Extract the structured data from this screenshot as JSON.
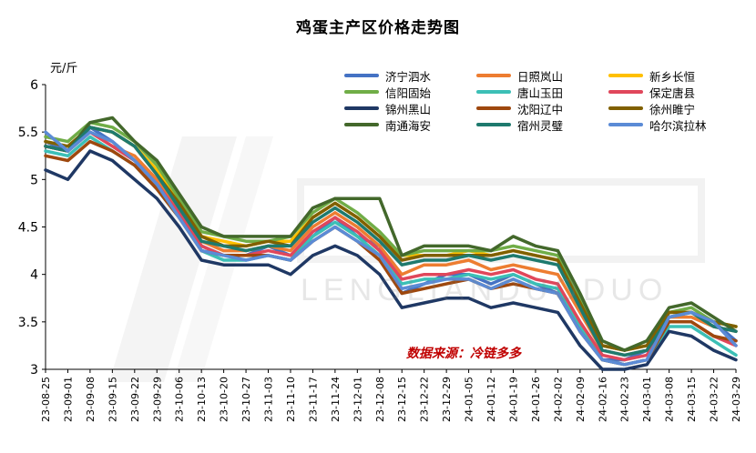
{
  "title": "鸡蛋主产区价格走势图",
  "unit": "元/斤",
  "source": "数据来源：冷链多多",
  "watermark": "LENGLIANDUODUO",
  "chart_data": {
    "type": "line",
    "ylim": [
      3,
      6
    ],
    "yticks": [
      "6",
      "5.5",
      "5",
      "4.5",
      "4",
      "3.5",
      "3"
    ],
    "x": [
      "23-08-25",
      "23-09-01",
      "23-09-08",
      "23-09-15",
      "23-09-22",
      "23-09-29",
      "23-10-06",
      "23-10-13",
      "23-10-20",
      "23-10-27",
      "23-11-03",
      "23-11-10",
      "23-11-17",
      "23-11-24",
      "23-12-01",
      "23-12-08",
      "23-12-15",
      "23-12-22",
      "23-12-29",
      "24-01-05",
      "24-01-12",
      "24-01-19",
      "24-01-26",
      "24-02-02",
      "24-02-09",
      "24-02-16",
      "24-02-23",
      "24-03-01",
      "24-03-08",
      "24-03-15",
      "24-03-22",
      "24-03-29"
    ],
    "legend_position": "top-right",
    "series": [
      {
        "name": "济宁泗水",
        "color": "#4472c4",
        "values": [
          5.4,
          5.3,
          5.55,
          5.4,
          5.2,
          5.0,
          4.7,
          4.3,
          4.2,
          4.2,
          4.3,
          4.2,
          4.4,
          4.6,
          4.4,
          4.3,
          3.8,
          3.9,
          4.0,
          4.0,
          3.9,
          4.0,
          3.9,
          3.8,
          3.4,
          3.1,
          3.1,
          3.2,
          3.6,
          3.6,
          3.5,
          3.3
        ]
      },
      {
        "name": "日照岚山",
        "color": "#ed7d31",
        "values": [
          5.35,
          5.3,
          5.5,
          5.35,
          5.25,
          5.0,
          4.65,
          4.35,
          4.25,
          4.25,
          4.3,
          4.25,
          4.5,
          4.65,
          4.5,
          4.3,
          4.0,
          4.1,
          4.1,
          4.15,
          4.05,
          4.1,
          4.05,
          4.0,
          3.6,
          3.2,
          3.15,
          3.2,
          3.55,
          3.55,
          3.45,
          3.4
        ]
      },
      {
        "name": "新乡长恒",
        "color": "#ffc000",
        "values": [
          5.4,
          5.35,
          5.55,
          5.5,
          5.35,
          5.1,
          4.75,
          4.4,
          4.35,
          4.3,
          4.35,
          4.35,
          4.6,
          4.75,
          4.6,
          4.4,
          4.2,
          4.2,
          4.2,
          4.25,
          4.2,
          4.25,
          4.2,
          4.15,
          3.7,
          3.25,
          3.2,
          3.25,
          3.6,
          3.6,
          3.5,
          3.45
        ]
      },
      {
        "name": "信阳固始",
        "color": "#70ad47",
        "values": [
          5.45,
          5.4,
          5.6,
          5.55,
          5.4,
          5.15,
          4.8,
          4.45,
          4.4,
          4.35,
          4.35,
          4.4,
          4.65,
          4.8,
          4.65,
          4.45,
          4.2,
          4.25,
          4.25,
          4.25,
          4.25,
          4.3,
          4.25,
          4.2,
          3.75,
          3.25,
          3.2,
          3.3,
          3.6,
          3.65,
          3.5,
          3.45
        ]
      },
      {
        "name": "唐山玉田",
        "color": "#3cbfb6",
        "values": [
          5.3,
          5.25,
          5.45,
          5.3,
          5.15,
          4.9,
          4.6,
          4.25,
          4.15,
          4.15,
          4.2,
          4.15,
          4.4,
          4.55,
          4.4,
          4.2,
          3.9,
          3.95,
          3.95,
          4.0,
          3.95,
          4.0,
          3.9,
          3.85,
          3.45,
          3.1,
          3.05,
          3.1,
          3.45,
          3.45,
          3.3,
          3.15
        ]
      },
      {
        "name": "保定唐县",
        "color": "#e0475b",
        "values": [
          5.35,
          5.3,
          5.5,
          5.35,
          5.2,
          4.95,
          4.65,
          4.3,
          4.2,
          4.2,
          4.25,
          4.2,
          4.45,
          4.6,
          4.45,
          4.25,
          3.95,
          4.0,
          4.0,
          4.05,
          4.0,
          4.05,
          3.95,
          3.9,
          3.5,
          3.15,
          3.1,
          3.15,
          3.5,
          3.5,
          3.35,
          3.25
        ]
      },
      {
        "name": "锦州黑山",
        "color": "#1f3864",
        "values": [
          5.1,
          5.0,
          5.3,
          5.2,
          5.0,
          4.8,
          4.5,
          4.15,
          4.1,
          4.1,
          4.1,
          4.0,
          4.2,
          4.3,
          4.2,
          4.0,
          3.65,
          3.7,
          3.75,
          3.75,
          3.65,
          3.7,
          3.65,
          3.6,
          3.25,
          3.0,
          3.0,
          3.05,
          3.4,
          3.35,
          3.2,
          3.1
        ]
      },
      {
        "name": "沈阳辽中",
        "color": "#9e480e",
        "values": [
          5.25,
          5.2,
          5.4,
          5.3,
          5.15,
          4.9,
          4.6,
          4.25,
          4.2,
          4.2,
          4.2,
          4.15,
          4.35,
          4.5,
          4.35,
          4.15,
          3.8,
          3.85,
          3.9,
          3.95,
          3.85,
          3.9,
          3.85,
          3.8,
          3.4,
          3.1,
          3.05,
          3.1,
          3.5,
          3.5,
          3.35,
          3.3
        ]
      },
      {
        "name": "徐州睢宁",
        "color": "#806000",
        "values": [
          5.4,
          5.35,
          5.55,
          5.5,
          5.35,
          5.05,
          4.75,
          4.4,
          4.3,
          4.3,
          4.35,
          4.3,
          4.6,
          4.75,
          4.6,
          4.4,
          4.15,
          4.2,
          4.2,
          4.2,
          4.2,
          4.25,
          4.2,
          4.15,
          3.7,
          3.25,
          3.2,
          3.25,
          3.6,
          3.6,
          3.5,
          3.45
        ]
      },
      {
        "name": "南通海安",
        "color": "#43682b",
        "values": [
          5.35,
          5.3,
          5.6,
          5.65,
          5.4,
          5.2,
          4.85,
          4.5,
          4.4,
          4.4,
          4.4,
          4.4,
          4.7,
          4.8,
          4.8,
          4.8,
          4.2,
          4.3,
          4.3,
          4.3,
          4.25,
          4.4,
          4.3,
          4.25,
          3.8,
          3.3,
          3.2,
          3.3,
          3.65,
          3.7,
          3.55,
          3.4
        ]
      },
      {
        "name": "宿州灵璧",
        "color": "#1e7a6e",
        "values": [
          5.35,
          5.3,
          5.55,
          5.5,
          5.35,
          5.05,
          4.7,
          4.35,
          4.3,
          4.25,
          4.3,
          4.3,
          4.55,
          4.7,
          4.55,
          4.35,
          4.1,
          4.15,
          4.15,
          4.2,
          4.15,
          4.2,
          4.15,
          4.1,
          3.65,
          3.2,
          3.15,
          3.2,
          3.55,
          3.6,
          3.45,
          3.4
        ]
      },
      {
        "name": "哈尔滨拉林",
        "color": "#5b8bd6",
        "values": [
          5.5,
          5.3,
          5.5,
          5.4,
          5.2,
          4.95,
          4.6,
          4.25,
          4.2,
          4.15,
          4.2,
          4.15,
          4.35,
          4.5,
          4.35,
          4.2,
          3.85,
          3.9,
          3.95,
          3.95,
          3.85,
          3.95,
          3.85,
          3.8,
          3.4,
          3.1,
          3.05,
          3.1,
          3.55,
          3.6,
          3.5,
          3.25
        ]
      }
    ]
  }
}
